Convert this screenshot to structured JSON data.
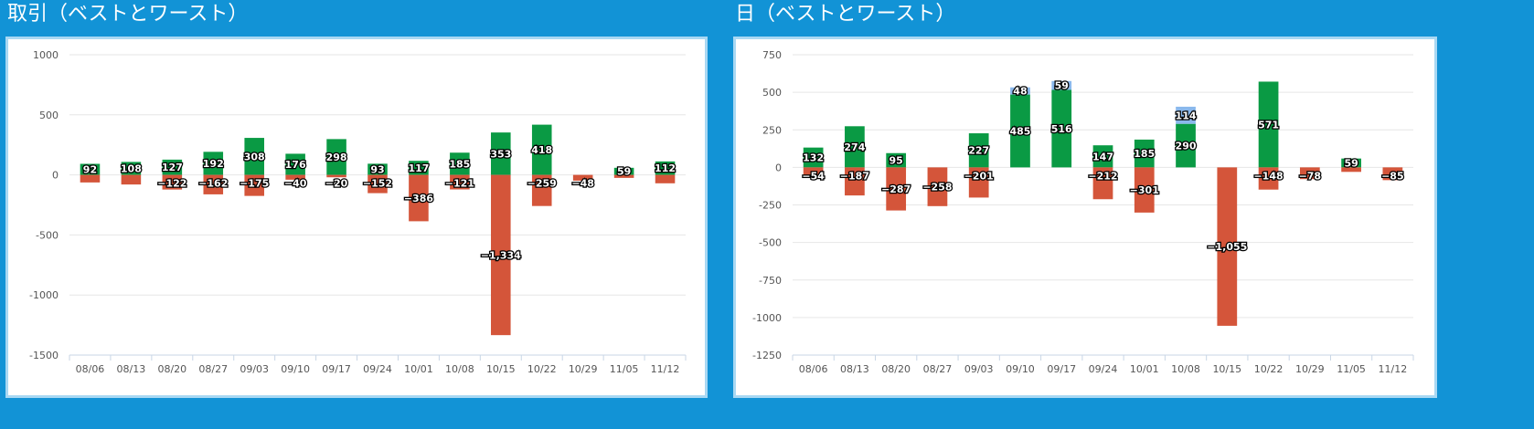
{
  "panels": [
    {
      "title": "取引（ベストとワースト）"
    },
    {
      "title": "日（ベストとワースト）"
    }
  ],
  "colors": {
    "background": "#1293d6",
    "frame_border": "#a9d8f3",
    "best": "#0a9a44",
    "worst": "#d4553a",
    "extra": "#8ab8ec",
    "grid": "#e6e6e6",
    "axis": "#c8d6e6"
  },
  "chart_data": [
    {
      "type": "bar",
      "stacked": true,
      "categories": [
        "08/06",
        "08/13",
        "08/20",
        "08/27",
        "09/03",
        "09/10",
        "09/17",
        "09/24",
        "10/01",
        "10/08",
        "10/15",
        "10/22",
        "10/29",
        "11/05",
        "11/12"
      ],
      "yticks": [
        -1500,
        -1000,
        -500,
        0,
        500,
        1000
      ],
      "ylim": [
        -1500,
        1000
      ],
      "grid": true,
      "series": [
        {
          "role": "best",
          "values": [
            92,
            108,
            127,
            192,
            308,
            176,
            298,
            93,
            117,
            185,
            353,
            418,
            null,
            59,
            112
          ],
          "labels": [
            "92",
            "108",
            "127",
            "192",
            "308",
            "176",
            "298",
            "93",
            "117",
            "185",
            "353",
            "418",
            "",
            "59",
            "112"
          ]
        },
        {
          "role": "worst",
          "values": [
            -63,
            -80,
            -122,
            -162,
            -175,
            -40,
            -20,
            -152,
            -386,
            -121,
            -1334,
            -259,
            -48,
            -25,
            -70
          ],
          "labels": [
            "",
            "",
            "−122",
            "−162",
            "−175",
            "−40",
            "−20",
            "−152",
            "−386",
            "−121",
            "−1,334",
            "−259",
            "−48",
            "",
            ""
          ]
        }
      ]
    },
    {
      "type": "bar",
      "stacked": true,
      "categories": [
        "08/06",
        "08/13",
        "08/20",
        "08/27",
        "09/03",
        "09/10",
        "09/17",
        "09/24",
        "10/01",
        "10/08",
        "10/15",
        "10/22",
        "10/29",
        "11/05",
        "11/12"
      ],
      "yticks": [
        -1250,
        -1000,
        -750,
        -500,
        -250,
        0,
        250,
        500,
        750
      ],
      "ylim": [
        -1250,
        750
      ],
      "grid": true,
      "series": [
        {
          "role": "best",
          "values": [
            132,
            274,
            95,
            null,
            227,
            485,
            516,
            147,
            185,
            290,
            null,
            571,
            null,
            59,
            null
          ],
          "labels": [
            "132",
            "274",
            "95",
            "",
            "227",
            "485",
            "516",
            "147",
            "185",
            "290",
            "",
            "571",
            "",
            "59",
            ""
          ]
        },
        {
          "role": "extra",
          "values": [
            null,
            null,
            null,
            null,
            null,
            48,
            59,
            null,
            null,
            114,
            null,
            null,
            null,
            null,
            null
          ],
          "labels": [
            "",
            "",
            "",
            "",
            "",
            "48",
            "59",
            "",
            "",
            "114",
            "",
            "",
            "",
            "",
            ""
          ]
        },
        {
          "role": "worst",
          "values": [
            -54,
            -187,
            -287,
            -258,
            -201,
            null,
            null,
            -212,
            -301,
            null,
            -1055,
            -148,
            -78,
            -30,
            -85
          ],
          "labels": [
            "−54",
            "−187",
            "−287",
            "−258",
            "−201",
            "",
            "",
            "−212",
            "−301",
            "",
            "−1,055",
            "−148",
            "−78",
            "",
            "−85"
          ]
        }
      ]
    }
  ]
}
